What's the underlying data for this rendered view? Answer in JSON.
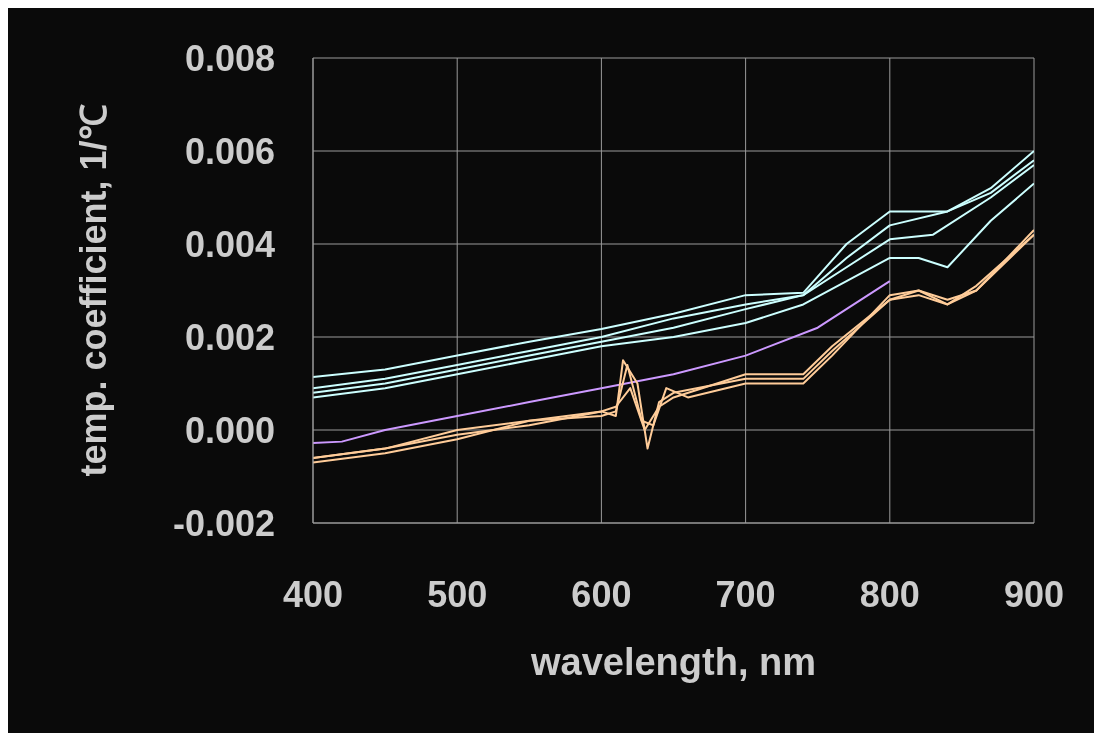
{
  "chart_data": {
    "type": "line",
    "xlabel": "wavelength, nm",
    "ylabel": "temp. coefficient, 1/℃",
    "xlim": [
      400,
      900
    ],
    "xticks": [
      400,
      500,
      600,
      700,
      800,
      900
    ],
    "ylim": [
      -0.002,
      0.008
    ],
    "yticks": [
      {
        "value": -0.002,
        "label": "-0.002"
      },
      {
        "value": 0,
        "label": "0.000"
      },
      {
        "value": 0.002,
        "label": "0.002"
      },
      {
        "value": 0.004,
        "label": "0.004"
      },
      {
        "value": 0.006,
        "label": "0.006"
      },
      {
        "value": 0.008,
        "label": "0.008"
      }
    ],
    "grid": true,
    "legend": false,
    "marker": "none",
    "series": [
      {
        "color": "#ccffff",
        "x": [
          400,
          450,
          500,
          550,
          600,
          650,
          700,
          740,
          770,
          800,
          840,
          870,
          900
        ],
        "values": [
          0.00114,
          0.0013,
          0.0016,
          0.0019,
          0.00217,
          0.0025,
          0.0029,
          0.00295,
          0.004,
          0.0047,
          0.0047,
          0.0052,
          0.006
        ]
      },
      {
        "color": "#ccffff",
        "x": [
          400,
          450,
          500,
          550,
          600,
          650,
          700,
          740,
          770,
          800,
          840,
          870,
          900
        ],
        "values": [
          0.0009,
          0.0011,
          0.0014,
          0.0017,
          0.002,
          0.0024,
          0.0027,
          0.0029,
          0.0037,
          0.0044,
          0.0047,
          0.0051,
          0.0058
        ]
      },
      {
        "color": "#ccffff",
        "x": [
          400,
          450,
          500,
          550,
          600,
          650,
          700,
          740,
          770,
          800,
          830,
          870,
          900
        ],
        "values": [
          0.0008,
          0.001,
          0.0013,
          0.0016,
          0.0019,
          0.0022,
          0.0026,
          0.0029,
          0.0035,
          0.0041,
          0.0042,
          0.005,
          0.0057
        ]
      },
      {
        "color": "#ccffff",
        "x": [
          400,
          450,
          500,
          550,
          600,
          650,
          700,
          740,
          770,
          800,
          820,
          840,
          870,
          900
        ],
        "values": [
          0.0007,
          0.0009,
          0.0012,
          0.0015,
          0.0018,
          0.002,
          0.0023,
          0.0027,
          0.0032,
          0.0037,
          0.0037,
          0.0035,
          0.0045,
          0.0053
        ]
      },
      {
        "color": "#cc99ff",
        "x": [
          400,
          420,
          450,
          500,
          550,
          600,
          650,
          700,
          750,
          800
        ],
        "values": [
          -0.00028,
          -0.00025,
          0.0,
          0.0003,
          0.0006,
          0.0009,
          0.0012,
          0.0016,
          0.0022,
          0.0032
        ]
      },
      {
        "color": "#ffcc99",
        "x": [
          400,
          450,
          500,
          550,
          600,
          610,
          615,
          625,
          632,
          640,
          650,
          700,
          740,
          760,
          800,
          820,
          840,
          860,
          900
        ],
        "values": [
          -0.0006,
          -0.0004,
          -0.0001,
          0.0001,
          0.0004,
          0.0003,
          0.0015,
          0.001,
          -0.0004,
          0.0006,
          0.0008,
          0.0011,
          0.0011,
          0.0017,
          0.0028,
          0.003,
          0.0027,
          0.0031,
          0.0042
        ]
      },
      {
        "color": "#ffcc99",
        "x": [
          400,
          450,
          500,
          550,
          600,
          610,
          618,
          628,
          636,
          645,
          660,
          700,
          740,
          760,
          800,
          820,
          840,
          860,
          900
        ],
        "values": [
          -0.0007,
          -0.0005,
          -0.0002,
          0.0002,
          0.0003,
          0.0004,
          0.0014,
          0.0002,
          0.0001,
          0.0009,
          0.0007,
          0.001,
          0.001,
          0.0016,
          0.0029,
          0.003,
          0.0028,
          0.003,
          0.0042
        ]
      },
      {
        "color": "#ffcc99",
        "x": [
          400,
          450,
          500,
          550,
          600,
          610,
          620,
          630,
          640,
          650,
          700,
          740,
          760,
          800,
          820,
          840,
          860,
          900
        ],
        "values": [
          -0.0006,
          -0.0004,
          0.0,
          0.0002,
          0.0004,
          0.0005,
          0.0009,
          0.0,
          0.0005,
          0.0007,
          0.0012,
          0.0012,
          0.0018,
          0.0028,
          0.0029,
          0.0027,
          0.003,
          0.0043
        ]
      }
    ]
  }
}
